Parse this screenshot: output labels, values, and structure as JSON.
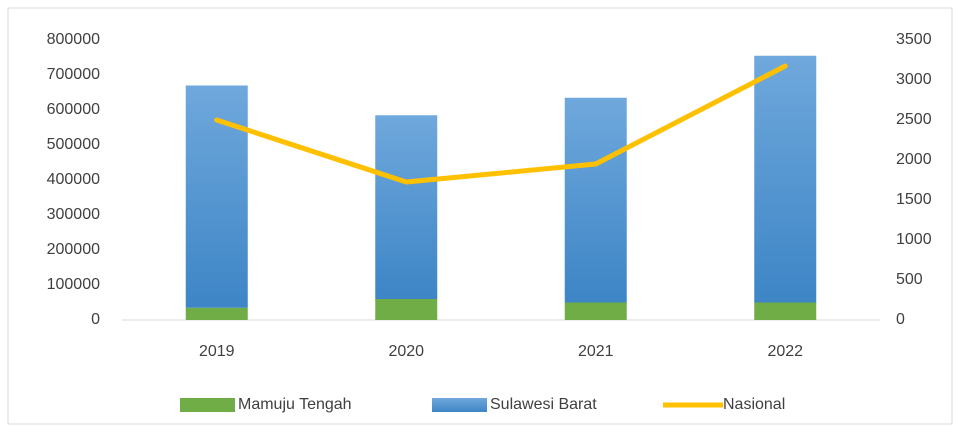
{
  "chart_data": {
    "type": "bar",
    "categories": [
      "2019",
      "2020",
      "2021",
      "2022"
    ],
    "series": [
      {
        "name": "Mamuju Tengah",
        "color": "#70ad47",
        "values": [
          35000,
          60000,
          50000,
          50000
        ]
      },
      {
        "name": "Sulawesi Barat",
        "color": "#5b9bd5",
        "values": [
          635000,
          525000,
          585000,
          705000
        ]
      },
      {
        "name": "Nasional",
        "type": "line",
        "axis": "y2",
        "color": "#ffc000",
        "values": [
          2500,
          1725,
          1950,
          3175
        ]
      }
    ],
    "ylim": [
      0,
      800000
    ],
    "yticks": [
      0,
      100000,
      200000,
      300000,
      400000,
      500000,
      600000,
      700000,
      800000
    ],
    "y2lim": [
      0,
      3500
    ],
    "y2ticks": [
      0,
      500,
      1000,
      1500,
      2000,
      2500,
      3000,
      3500
    ],
    "stacked": true,
    "grid": false,
    "legend": "bottom"
  }
}
